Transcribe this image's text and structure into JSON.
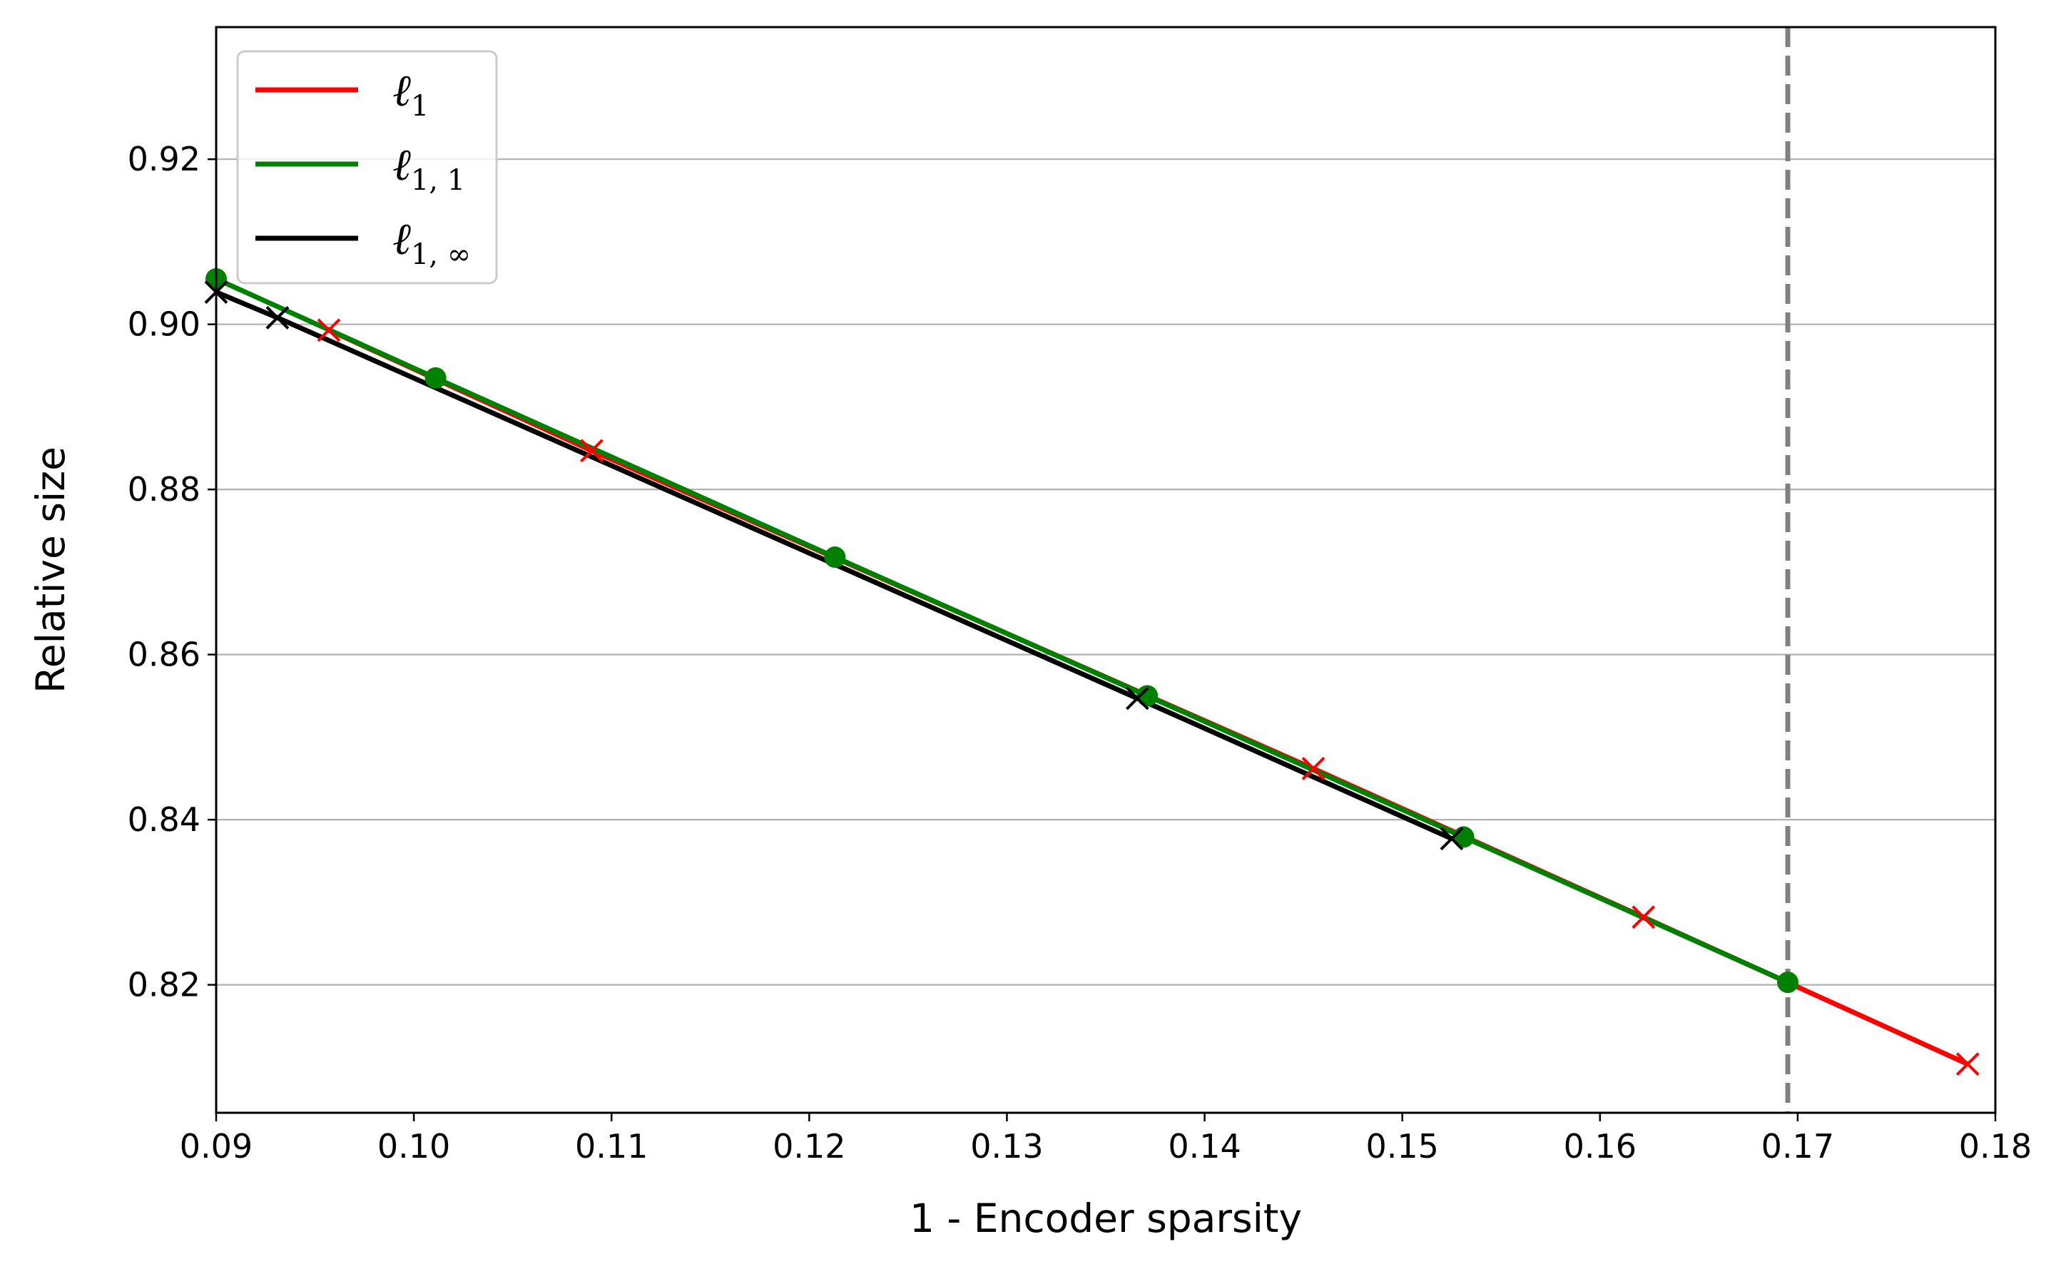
{
  "chart_data": {
    "type": "line",
    "xlabel": "1 - Encoder sparsity",
    "ylabel": "Relative size",
    "xlim": [
      0.09,
      0.18
    ],
    "ylim": [
      0.8045,
      0.936
    ],
    "xticks": [
      0.09,
      0.1,
      0.11,
      0.12,
      0.13,
      0.14,
      0.15,
      0.16,
      0.17,
      0.18
    ],
    "xtick_labels": [
      "0.09",
      "0.10",
      "0.11",
      "0.12",
      "0.13",
      "0.14",
      "0.15",
      "0.16",
      "0.17",
      "0.18"
    ],
    "yticks": [
      0.82,
      0.84,
      0.86,
      0.88,
      0.9,
      0.92
    ],
    "ytick_labels": [
      "0.82",
      "0.84",
      "0.86",
      "0.88",
      "0.90",
      "0.92"
    ],
    "grid": "horizontal",
    "legend_position": "top-left",
    "vline": {
      "x": 0.1695,
      "color": "#808080",
      "style": "dashed"
    },
    "series": [
      {
        "name": "ℓ1",
        "legend_main": "ℓ",
        "legend_sub": "1",
        "color": "#ff0000",
        "marker": "x",
        "points": [
          [
            0.0957,
            0.8993
          ],
          [
            0.109,
            0.8847
          ],
          [
            0.1455,
            0.8462
          ],
          [
            0.1622,
            0.8282
          ],
          [
            0.1786,
            0.8104
          ]
        ]
      },
      {
        "name": "ℓ1,1",
        "legend_main": "ℓ",
        "legend_sub": "1, 1",
        "color": "#008000",
        "marker": "o",
        "points": [
          [
            0.09,
            0.9055
          ],
          [
            0.1011,
            0.8935
          ],
          [
            0.1213,
            0.8718
          ],
          [
            0.1371,
            0.855
          ],
          [
            0.1531,
            0.8379
          ],
          [
            0.1695,
            0.8203
          ]
        ]
      },
      {
        "name": "ℓ1,∞",
        "legend_main": "ℓ",
        "legend_sub": "1, ∞",
        "color": "#000000",
        "marker": "x",
        "points": [
          [
            0.09,
            0.9039
          ],
          [
            0.0931,
            0.9008
          ],
          [
            0.1366,
            0.8547
          ],
          [
            0.1525,
            0.8377
          ]
        ]
      }
    ]
  }
}
